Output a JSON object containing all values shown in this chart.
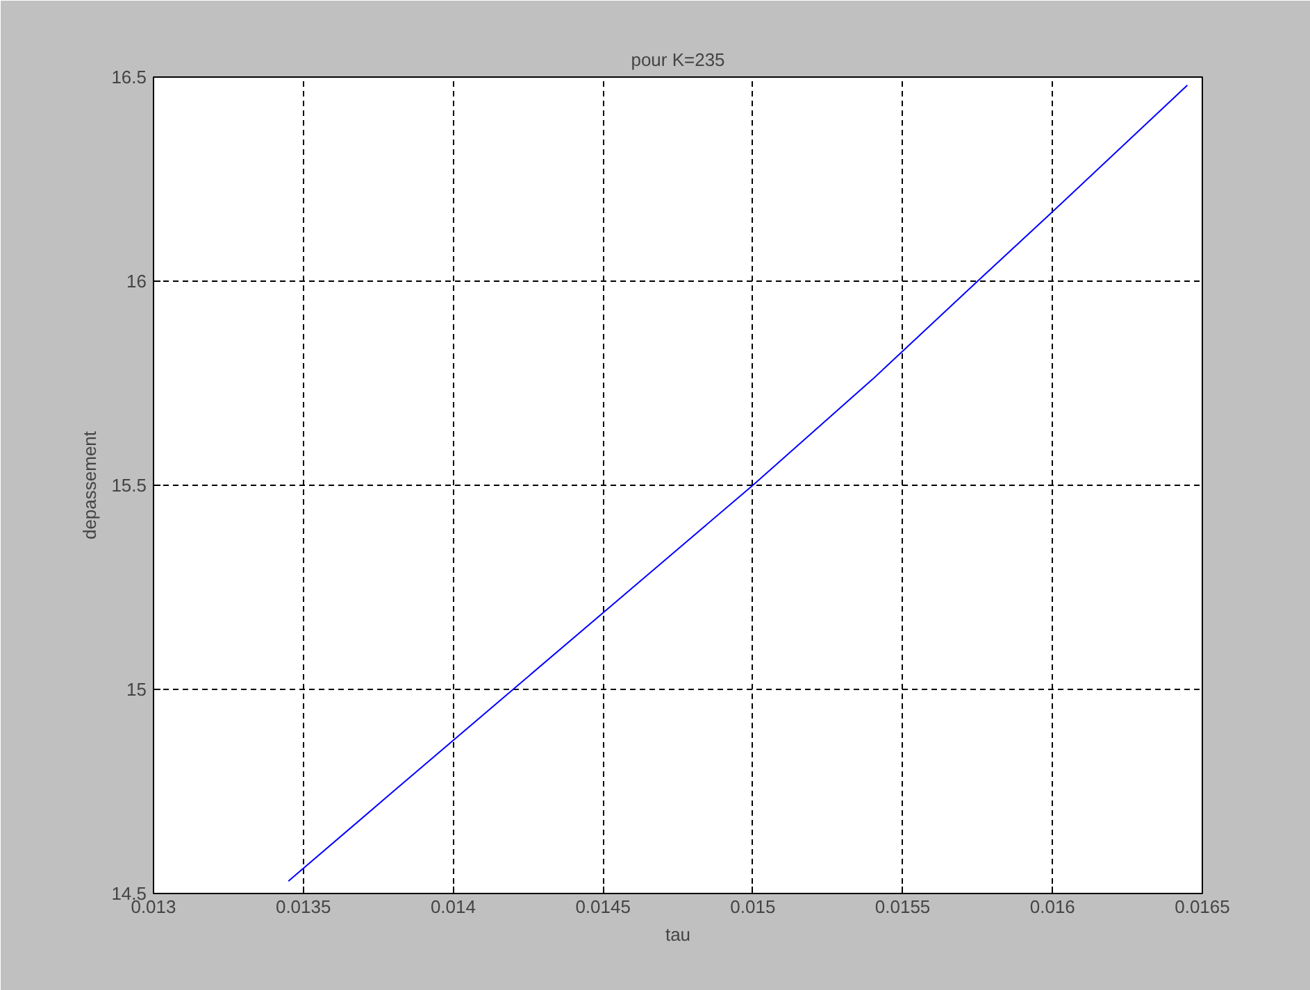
{
  "chart_data": {
    "type": "line",
    "title": "pour K=235",
    "xlabel": "tau",
    "ylabel": "depassement",
    "x": [
      0.01345,
      0.0138,
      0.0142,
      0.0146,
      0.015,
      0.0154,
      0.01575,
      0.016,
      0.01645
    ],
    "series": [
      {
        "color": "#0000ff",
        "values": [
          14.53,
          14.75,
          15.0,
          15.25,
          15.5,
          15.76,
          16.0,
          16.17,
          16.48
        ]
      }
    ],
    "xlim": [
      0.013,
      0.0165
    ],
    "xticks": [
      0.013,
      0.0135,
      0.014,
      0.0145,
      0.015,
      0.0155,
      0.016,
      0.0165
    ],
    "ylim": [
      14.5,
      16.5
    ],
    "yticks": [
      14.5,
      15,
      15.5,
      16,
      16.5
    ],
    "grid": true,
    "line_style": "solid"
  }
}
